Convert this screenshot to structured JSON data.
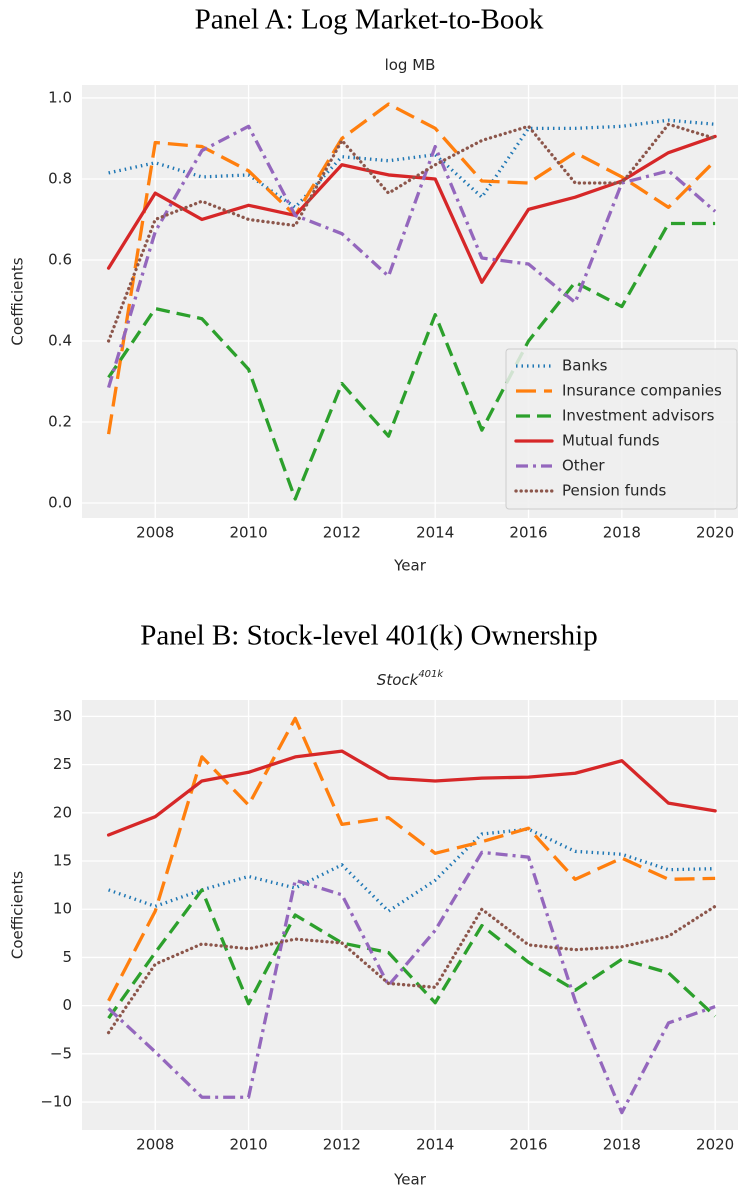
{
  "chart_data": [
    {
      "type": "line",
      "title": "Panel A: Log Market-to-Book",
      "subtitle": "log MB",
      "xlabel": "Year",
      "ylabel": "Coefficients",
      "x": [
        2007,
        2008,
        2009,
        2010,
        2011,
        2012,
        2013,
        2014,
        2015,
        2016,
        2017,
        2018,
        2019,
        2020
      ],
      "xlim": [
        2006.43,
        2020.49
      ],
      "xticks": [
        2008,
        2010,
        2012,
        2014,
        2016,
        2018,
        2020
      ],
      "ylim": [
        -0.037,
        1.032
      ],
      "yticks": [
        {
          "value": 0,
          "label": "0.0"
        },
        0.2,
        0.4,
        0.6,
        0.8,
        {
          "value": 1,
          "label": "1.0"
        }
      ],
      "grid": true,
      "legend": "lower right",
      "series": [
        {
          "name": "Banks",
          "color": "#1f77b4",
          "dash": "dotted",
          "values": [
            0.815,
            0.84,
            0.805,
            0.81,
            0.73,
            0.855,
            0.845,
            0.86,
            0.755,
            0.925,
            0.925,
            0.93,
            0.945,
            0.935
          ]
        },
        {
          "name": "Insurance companies",
          "color": "#ff7f0e",
          "dash": "long-dash",
          "values": [
            0.17,
            0.89,
            0.88,
            0.82,
            0.71,
            0.9,
            0.985,
            0.925,
            0.795,
            0.79,
            0.865,
            0.805,
            0.73,
            0.845
          ]
        },
        {
          "name": "Investment advisors",
          "color": "#2ca02c",
          "dash": "dashed",
          "values": [
            0.31,
            0.48,
            0.455,
            0.33,
            0.01,
            0.295,
            0.165,
            0.465,
            0.18,
            0.4,
            0.545,
            0.485,
            0.69,
            0.69
          ]
        },
        {
          "name": "Mutual funds",
          "color": "#d62728",
          "dash": "solid",
          "values": [
            0.58,
            0.765,
            0.7,
            0.735,
            0.71,
            0.835,
            0.81,
            0.8,
            0.545,
            0.725,
            0.755,
            0.795,
            0.865,
            0.905
          ]
        },
        {
          "name": "Other",
          "color": "#9467bd",
          "dash": "dash-dot",
          "values": [
            0.285,
            0.67,
            0.87,
            0.93,
            0.71,
            0.665,
            0.56,
            0.88,
            0.605,
            0.59,
            0.495,
            0.79,
            0.82,
            0.72
          ]
        },
        {
          "name": "Pension funds",
          "color": "#8c564b",
          "dash": "round-dot",
          "values": [
            0.4,
            0.7,
            0.745,
            0.7,
            0.685,
            0.895,
            0.765,
            0.835,
            0.895,
            0.93,
            0.79,
            0.79,
            0.935,
            0.9
          ]
        }
      ]
    },
    {
      "type": "line",
      "title": "Panel B: Stock-level 401(k) Ownership",
      "subtitle": "Stock",
      "subtitle_superscript": "401k",
      "xlabel": "Year",
      "ylabel": "Coefficients",
      "x": [
        2007,
        2008,
        2009,
        2010,
        2011,
        2012,
        2013,
        2014,
        2015,
        2016,
        2017,
        2018,
        2019,
        2020
      ],
      "xlim": [
        2006.43,
        2020.49
      ],
      "xticks": [
        2008,
        2010,
        2012,
        2014,
        2016,
        2018,
        2020
      ],
      "ylim": [
        -12.9,
        31.7
      ],
      "yticks": [
        {
          "value": -10,
          "label": "−10"
        },
        {
          "value": -5,
          "label": "−5"
        },
        0,
        5,
        10,
        15,
        20,
        25,
        30
      ],
      "grid": true,
      "series": [
        {
          "color": "#1f77b4",
          "dash": "dotted",
          "values": [
            12,
            10.3,
            12,
            13.4,
            12.2,
            14.6,
            9.8,
            13,
            17.8,
            18.3,
            16,
            15.7,
            14.1,
            14.2
          ]
        },
        {
          "color": "#ff7f0e",
          "dash": "long-dash",
          "values": [
            0.5,
            9.8,
            25.8,
            20.8,
            29.8,
            18.8,
            19.5,
            15.8,
            17,
            18.4,
            13.1,
            15.3,
            13.1,
            13.2
          ]
        },
        {
          "color": "#2ca02c",
          "dash": "dashed",
          "values": [
            -1.3,
            5.5,
            12,
            0.2,
            9.4,
            6.5,
            5.5,
            0.3,
            8.3,
            4.5,
            1.6,
            4.8,
            3.4,
            -1.1
          ]
        },
        {
          "color": "#d62728",
          "dash": "solid",
          "values": [
            17.7,
            19.6,
            23.3,
            24.2,
            25.8,
            26.4,
            23.6,
            23.3,
            23.6,
            23.7,
            24.1,
            25.4,
            21,
            20.2
          ]
        },
        {
          "color": "#9467bd",
          "dash": "dash-dot",
          "values": [
            -0.3,
            -4.8,
            -9.5,
            -9.5,
            13,
            11.5,
            2.1,
            7.8,
            15.9,
            15.4,
            0.5,
            -11.1,
            -1.8,
            -0.1
          ]
        },
        {
          "color": "#8c564b",
          "dash": "round-dot",
          "values": [
            -2.8,
            4.3,
            6.4,
            5.9,
            6.9,
            6.5,
            2.3,
            1.9,
            10,
            6.3,
            5.8,
            6.1,
            7.2,
            10.3
          ]
        }
      ]
    }
  ]
}
